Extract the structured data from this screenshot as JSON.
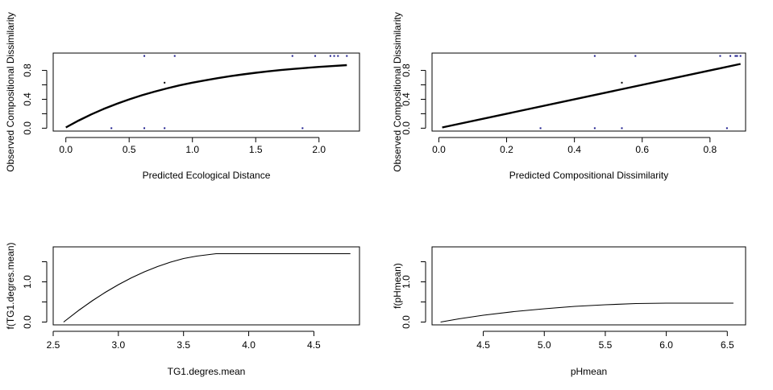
{
  "chart_data": [
    {
      "type": "scatter",
      "xlabel": "Predicted Ecological Distance",
      "ylabel": "Observed Compositional Dissimilarity",
      "xlim": [
        -0.1,
        2.32
      ],
      "ylim": [
        -0.04,
        1.04
      ],
      "xticks": [
        0.0,
        0.5,
        1.0,
        1.5,
        2.0
      ],
      "xtick_labels": [
        "0.0",
        "0.5",
        "1.0",
        "1.5",
        "2.0"
      ],
      "yticks": [
        0.0,
        0.2,
        0.4,
        0.6,
        0.8
      ],
      "ytick_labels": [
        "0.0",
        "0.4",
        "0.8"
      ],
      "points": [
        {
          "x": 0.36,
          "y": 0.0
        },
        {
          "x": 0.62,
          "y": 0.0
        },
        {
          "x": 0.78,
          "y": 0.0
        },
        {
          "x": 1.87,
          "y": 0.0
        },
        {
          "x": 0.78,
          "y": 0.63
        },
        {
          "x": 0.62,
          "y": 1.0
        },
        {
          "x": 0.86,
          "y": 1.0
        },
        {
          "x": 1.79,
          "y": 1.0
        },
        {
          "x": 1.97,
          "y": 1.0
        },
        {
          "x": 2.09,
          "y": 1.0
        },
        {
          "x": 2.12,
          "y": 1.0
        },
        {
          "x": 2.15,
          "y": 1.0
        },
        {
          "x": 2.22,
          "y": 1.0
        }
      ],
      "fit_line": {
        "x": [
          0.0,
          0.1,
          0.2,
          0.3,
          0.4,
          0.5,
          0.6,
          0.7,
          0.8,
          0.9,
          1.0,
          1.1,
          1.2,
          1.3,
          1.4,
          1.5,
          1.6,
          1.7,
          1.8,
          1.9,
          2.0,
          2.1,
          2.22
        ],
        "y": [
          0.01,
          0.105,
          0.19,
          0.267,
          0.336,
          0.399,
          0.455,
          0.506,
          0.551,
          0.593,
          0.63,
          0.663,
          0.693,
          0.721,
          0.745,
          0.767,
          0.787,
          0.805,
          0.821,
          0.835,
          0.849,
          0.86,
          0.873
        ]
      }
    },
    {
      "type": "scatter",
      "xlabel": "Predicted Compositional Dissimilarity",
      "ylabel": "Observed Compositional Dissimilarity",
      "xlim": [
        -0.02,
        0.905
      ],
      "ylim": [
        -0.04,
        1.04
      ],
      "xticks": [
        0.0,
        0.2,
        0.4,
        0.6,
        0.8
      ],
      "xtick_labels": [
        "0.0",
        "0.2",
        "0.4",
        "0.6",
        "0.8"
      ],
      "yticks": [
        0.0,
        0.2,
        0.4,
        0.6,
        0.8
      ],
      "ytick_labels": [
        "0.0",
        "0.4",
        "0.8"
      ],
      "points": [
        {
          "x": 0.3,
          "y": 0.0
        },
        {
          "x": 0.46,
          "y": 0.0
        },
        {
          "x": 0.54,
          "y": 0.0
        },
        {
          "x": 0.85,
          "y": 0.0
        },
        {
          "x": 0.54,
          "y": 0.63
        },
        {
          "x": 0.46,
          "y": 1.0
        },
        {
          "x": 0.58,
          "y": 1.0
        },
        {
          "x": 0.83,
          "y": 1.0
        },
        {
          "x": 0.86,
          "y": 1.0
        },
        {
          "x": 0.875,
          "y": 1.0
        },
        {
          "x": 0.88,
          "y": 1.0
        },
        {
          "x": 0.89,
          "y": 1.0
        }
      ],
      "fit_line": {
        "x": [
          0.01,
          0.89
        ],
        "y": [
          0.01,
          0.89
        ]
      }
    },
    {
      "type": "line",
      "xlabel": "TG1.degres.mean",
      "ylabel": "f(TG1.degres.mean)",
      "xlim": [
        2.5,
        4.85
      ],
      "ylim": [
        -0.07,
        1.87
      ],
      "xticks": [
        2.5,
        3.0,
        3.5,
        4.0,
        4.5
      ],
      "xtick_labels": [
        "2.5",
        "3.0",
        "3.5",
        "4.0",
        "4.5"
      ],
      "yticks": [
        0.0,
        0.5,
        1.0,
        1.5
      ],
      "ytick_labels": [
        "0.0",
        "1.0"
      ],
      "line": {
        "x": [
          2.58,
          2.7,
          2.8,
          2.9,
          3.0,
          3.1,
          3.2,
          3.3,
          3.4,
          3.5,
          3.6,
          3.7,
          3.75,
          4.0,
          4.3,
          4.6,
          4.78
        ],
        "y": [
          0.0,
          0.3,
          0.53,
          0.74,
          0.93,
          1.1,
          1.25,
          1.38,
          1.49,
          1.58,
          1.64,
          1.68,
          1.7,
          1.7,
          1.7,
          1.7,
          1.7
        ]
      }
    },
    {
      "type": "line",
      "xlabel": "pHmean",
      "ylabel": "f(pHmean)",
      "xlim": [
        4.08,
        6.65
      ],
      "ylim": [
        -0.07,
        1.87
      ],
      "xticks": [
        4.5,
        5.0,
        5.5,
        6.0,
        6.5
      ],
      "xtick_labels": [
        "4.5",
        "5.0",
        "5.5",
        "6.0",
        "6.5"
      ],
      "yticks": [
        0.0,
        0.5,
        1.0,
        1.5
      ],
      "ytick_labels": [
        "0.0",
        "1.0"
      ],
      "line": {
        "x": [
          4.15,
          4.3,
          4.5,
          4.75,
          5.0,
          5.25,
          5.5,
          5.75,
          6.0,
          6.3,
          6.55
        ],
        "y": [
          0.0,
          0.08,
          0.17,
          0.26,
          0.33,
          0.39,
          0.43,
          0.46,
          0.47,
          0.47,
          0.47
        ]
      }
    }
  ]
}
